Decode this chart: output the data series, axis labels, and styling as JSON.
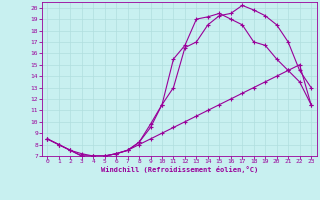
{
  "xlabel": "Windchill (Refroidissement éolien,°C)",
  "bg_color": "#c8f0f0",
  "line_color": "#990099",
  "grid_color": "#b0dede",
  "xlim": [
    -0.5,
    23.5
  ],
  "ylim": [
    7,
    20.5
  ],
  "xticks": [
    0,
    1,
    2,
    3,
    4,
    5,
    6,
    7,
    8,
    9,
    10,
    11,
    12,
    13,
    14,
    15,
    16,
    17,
    18,
    19,
    20,
    21,
    22,
    23
  ],
  "yticks": [
    7,
    8,
    9,
    10,
    11,
    12,
    13,
    14,
    15,
    16,
    17,
    18,
    19,
    20
  ],
  "line1_x": [
    0,
    1,
    2,
    3,
    4,
    5,
    6,
    7,
    8,
    9,
    10,
    11,
    12,
    13,
    14,
    15,
    16,
    17,
    18,
    19,
    20,
    21,
    22,
    23
  ],
  "line1_y": [
    8.5,
    8.0,
    7.5,
    7.0,
    7.0,
    7.0,
    7.2,
    7.5,
    8.2,
    9.5,
    11.5,
    13.0,
    16.5,
    17.0,
    18.5,
    19.3,
    19.5,
    20.2,
    19.8,
    19.3,
    18.5,
    17.0,
    14.5,
    13.0
  ],
  "line2_x": [
    0,
    1,
    2,
    3,
    4,
    5,
    6,
    7,
    8,
    9,
    10,
    11,
    12,
    13,
    14,
    15,
    16,
    17,
    18,
    19,
    20,
    21,
    22,
    23
  ],
  "line2_y": [
    8.5,
    8.0,
    7.5,
    7.0,
    7.0,
    7.0,
    7.2,
    7.5,
    8.2,
    9.8,
    11.5,
    15.5,
    16.7,
    19.0,
    19.2,
    19.5,
    19.0,
    18.5,
    17.0,
    16.7,
    15.5,
    14.5,
    13.5,
    11.5
  ],
  "line3_x": [
    0,
    1,
    2,
    3,
    4,
    5,
    6,
    7,
    8,
    9,
    10,
    11,
    12,
    13,
    14,
    15,
    16,
    17,
    18,
    19,
    20,
    21,
    22,
    23
  ],
  "line3_y": [
    8.5,
    8.0,
    7.5,
    7.2,
    7.0,
    7.0,
    7.2,
    7.5,
    8.0,
    8.5,
    9.0,
    9.5,
    10.0,
    10.5,
    11.0,
    11.5,
    12.0,
    12.5,
    13.0,
    13.5,
    14.0,
    14.5,
    15.0,
    11.5
  ]
}
